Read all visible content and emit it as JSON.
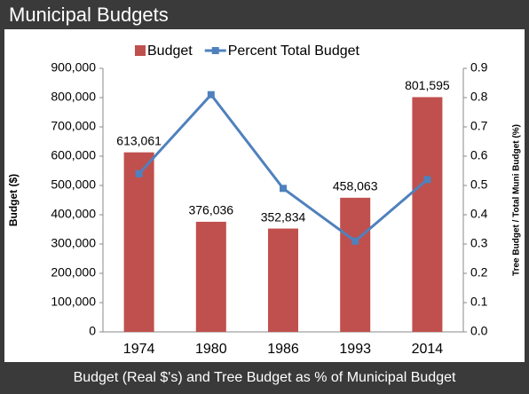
{
  "header": {
    "title": "Municipal Budgets"
  },
  "footer": {
    "caption": "Budget (Real $'s) and Tree Budget as % of Municipal Budget"
  },
  "chart_data": {
    "type": "bar",
    "categories": [
      "1974",
      "1980",
      "1986",
      "1993",
      "2014"
    ],
    "series": [
      {
        "name": "Budget",
        "type": "bar",
        "color": "#c0504d",
        "values": [
          613061,
          376036,
          352834,
          458063,
          801595
        ],
        "value_labels": [
          "613,061",
          "376,036",
          "352,834",
          "458,063",
          "801,595"
        ]
      },
      {
        "name": "Percent Total Budget",
        "type": "line",
        "axis": "y2",
        "color": "#4f81bd",
        "values": [
          0.54,
          0.81,
          0.49,
          0.31,
          0.52
        ]
      }
    ],
    "y_label": "Budget ($)",
    "y2_label": "Tree Budget / Total Muni Budget (%)",
    "ylim": [
      0,
      900000
    ],
    "yticks": [
      {
        "value": 0,
        "label": "0"
      },
      {
        "value": 100000,
        "label": "100,000"
      },
      {
        "value": 200000,
        "label": "200,000"
      },
      {
        "value": 300000,
        "label": "300,000"
      },
      {
        "value": 400000,
        "label": "400,000"
      },
      {
        "value": 500000,
        "label": "500,000"
      },
      {
        "value": 600000,
        "label": "600,000"
      },
      {
        "value": 700000,
        "label": "700,000"
      },
      {
        "value": 800000,
        "label": "800,000"
      },
      {
        "value": 900000,
        "label": "900,000"
      }
    ],
    "y2lim": [
      0,
      0.9
    ],
    "y2ticks": [
      {
        "value": 0,
        "label": "0.0"
      },
      0.1,
      0.2,
      0.3,
      0.4,
      0.5,
      0.6,
      0.7,
      0.8,
      0.9
    ],
    "grid": false,
    "legend": "top"
  }
}
